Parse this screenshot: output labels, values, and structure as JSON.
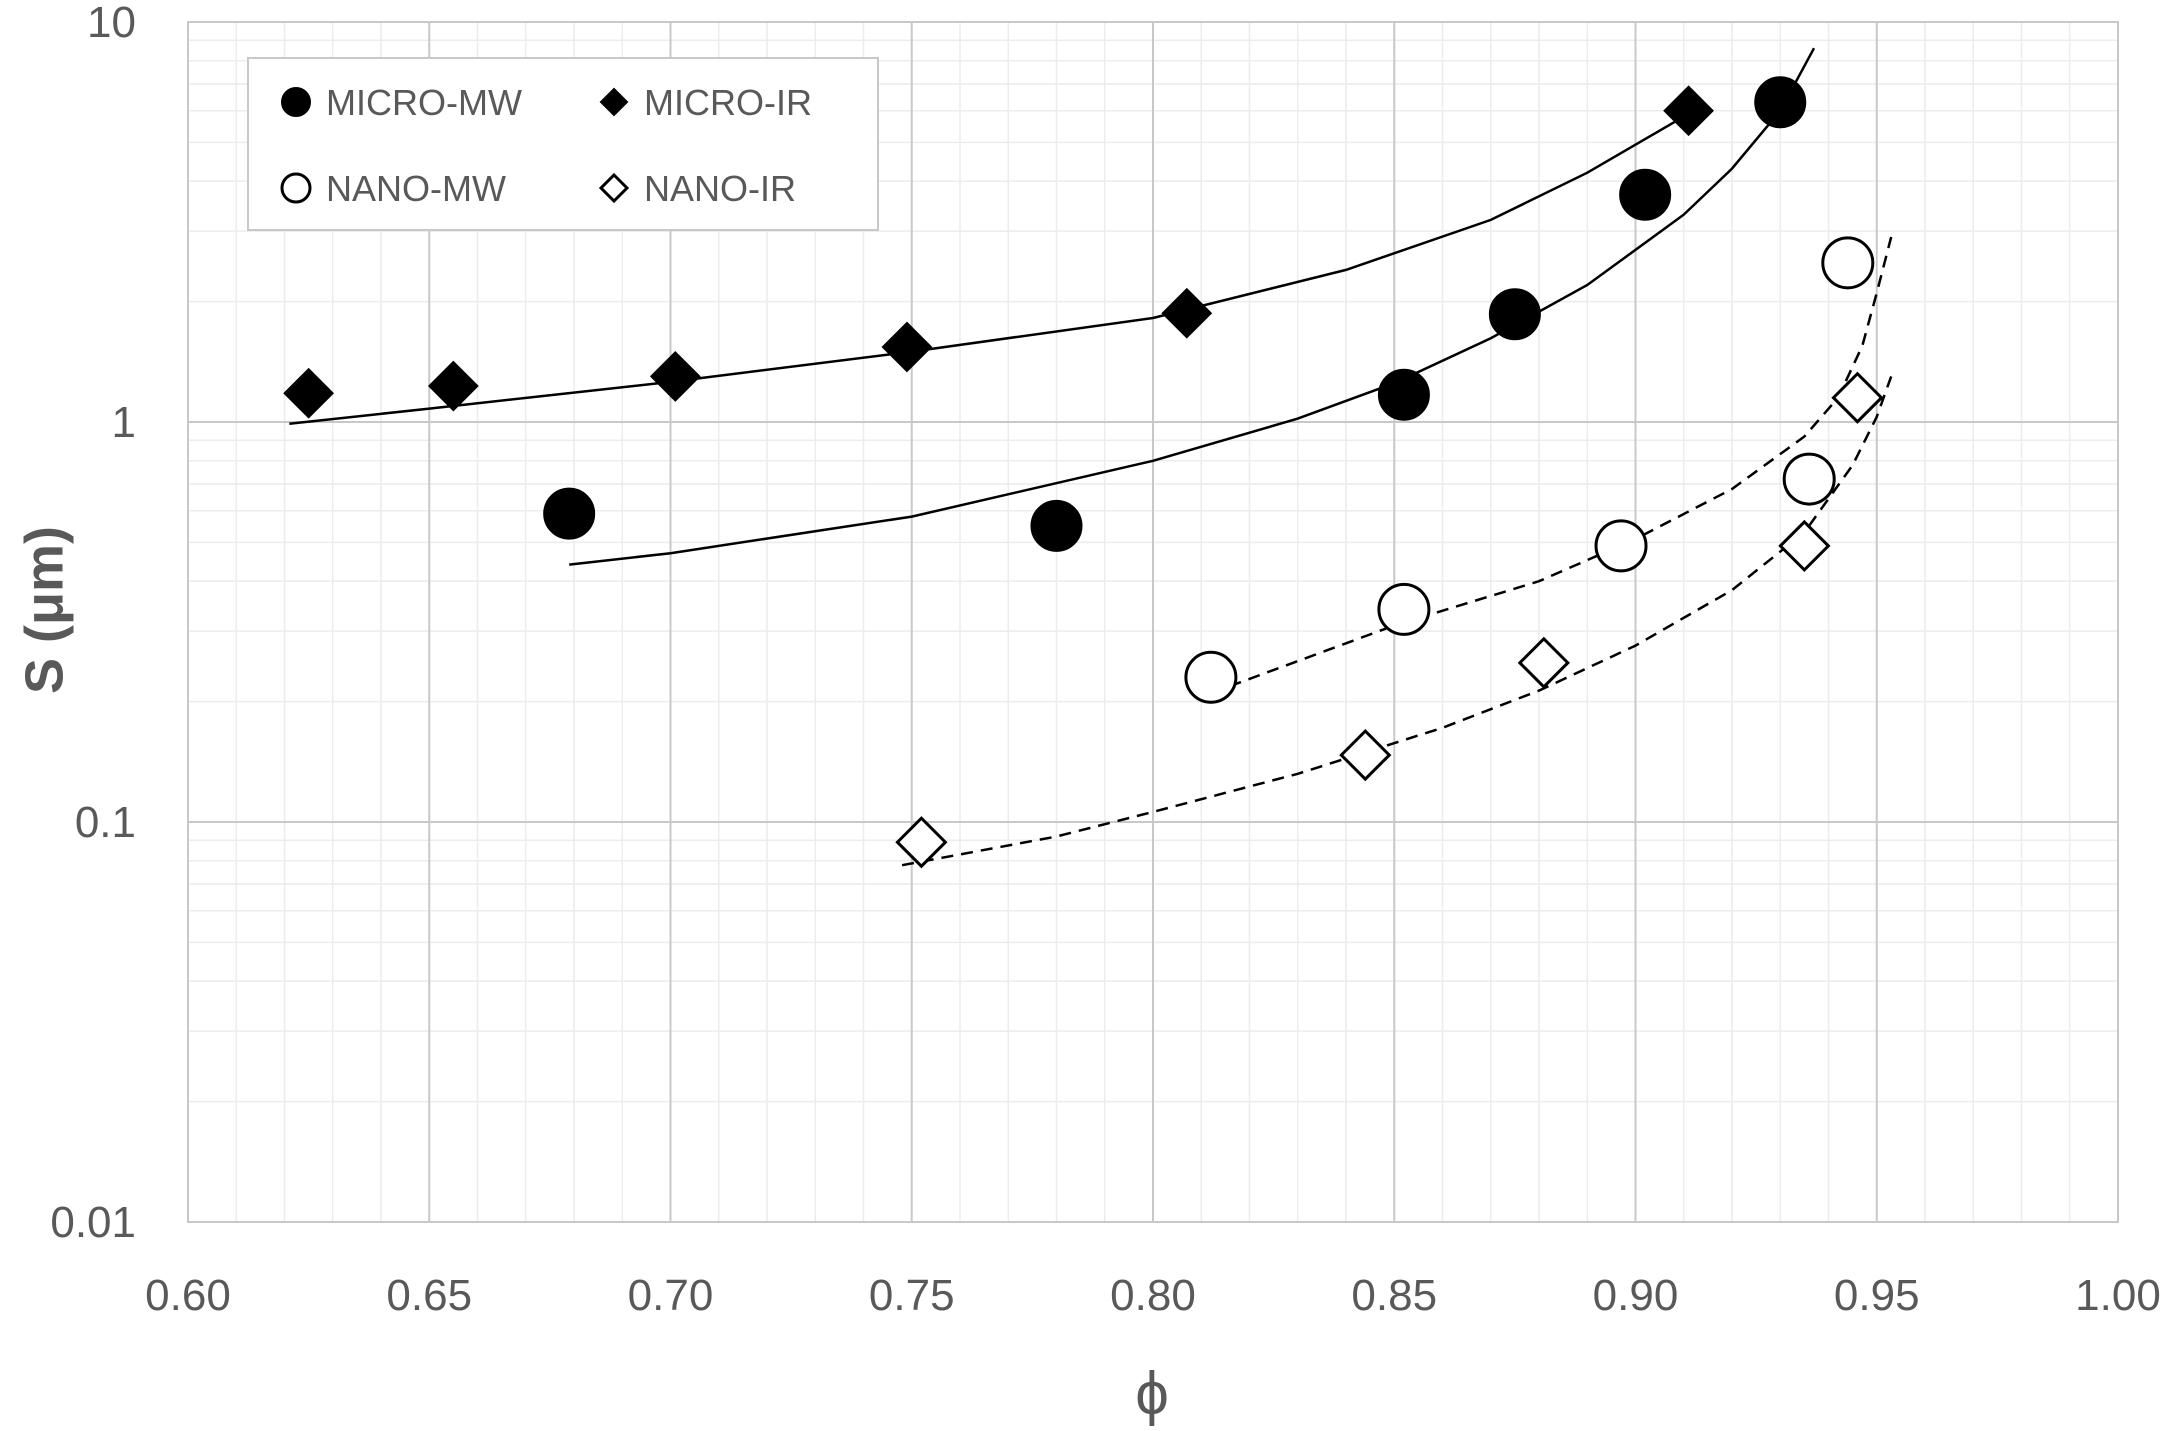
{
  "chart_data": {
    "type": "scatter",
    "title": "",
    "xlabel": "ϕ",
    "ylabel": "S (μm)",
    "x_range": [
      0.6,
      1.0
    ],
    "y_range": [
      0.01,
      10
    ],
    "y_scale": "log",
    "x_ticks": [
      "0.60",
      "0.65",
      "0.70",
      "0.75",
      "0.80",
      "0.85",
      "0.90",
      "0.95",
      "1.00"
    ],
    "y_ticks": [
      "0.01",
      "0.1",
      "1",
      "10"
    ],
    "grid": true,
    "legend_position": "top-left",
    "series": [
      {
        "name": "MICRO-MW",
        "marker": "circle-filled",
        "points": [
          [
            0.679,
            0.59
          ],
          [
            0.78,
            0.55
          ],
          [
            0.852,
            1.17
          ],
          [
            0.875,
            1.86
          ],
          [
            0.902,
            3.7
          ],
          [
            0.93,
            6.3
          ]
        ],
        "fit": {
          "style": "solid",
          "points": [
            [
              0.679,
              0.44
            ],
            [
              0.7,
              0.47
            ],
            [
              0.75,
              0.58
            ],
            [
              0.8,
              0.8
            ],
            [
              0.83,
              1.02
            ],
            [
              0.85,
              1.25
            ],
            [
              0.87,
              1.62
            ],
            [
              0.89,
              2.2
            ],
            [
              0.91,
              3.3
            ],
            [
              0.92,
              4.3
            ],
            [
              0.93,
              6.0
            ],
            [
              0.937,
              8.6
            ]
          ]
        }
      },
      {
        "name": "MICRO-IR",
        "marker": "diamond-filled",
        "points": [
          [
            0.625,
            1.18
          ],
          [
            0.655,
            1.23
          ],
          [
            0.701,
            1.3
          ],
          [
            0.749,
            1.54
          ],
          [
            0.807,
            1.87
          ],
          [
            0.911,
            6.0
          ]
        ],
        "fit": {
          "style": "solid",
          "points": [
            [
              0.621,
              0.99
            ],
            [
              0.65,
              1.08
            ],
            [
              0.7,
              1.26
            ],
            [
              0.75,
              1.5
            ],
            [
              0.8,
              1.82
            ],
            [
              0.84,
              2.4
            ],
            [
              0.87,
              3.2
            ],
            [
              0.89,
              4.2
            ],
            [
              0.91,
              5.8
            ]
          ]
        }
      },
      {
        "name": "NANO-MW",
        "marker": "circle-open",
        "points": [
          [
            0.812,
            0.23
          ],
          [
            0.852,
            0.34
          ],
          [
            0.897,
            0.49
          ],
          [
            0.936,
            0.72
          ],
          [
            0.944,
            2.5
          ]
        ],
        "fit": {
          "style": "dashed",
          "points": [
            [
              0.812,
              0.21
            ],
            [
              0.85,
              0.31
            ],
            [
              0.88,
              0.4
            ],
            [
              0.9,
              0.51
            ],
            [
              0.92,
              0.68
            ],
            [
              0.935,
              0.92
            ],
            [
              0.942,
              1.15
            ],
            [
              0.947,
              1.55
            ],
            [
              0.95,
              2.1
            ],
            [
              0.953,
              2.9
            ]
          ]
        }
      },
      {
        "name": "NANO-IR",
        "marker": "diamond-open",
        "points": [
          [
            0.752,
            0.089
          ],
          [
            0.844,
            0.147
          ],
          [
            0.881,
            0.25
          ],
          [
            0.935,
            0.49
          ],
          [
            0.946,
            1.15
          ]
        ],
        "fit": {
          "style": "dashed",
          "points": [
            [
              0.748,
              0.078
            ],
            [
              0.78,
              0.092
            ],
            [
              0.8,
              0.106
            ],
            [
              0.83,
              0.132
            ],
            [
              0.86,
              0.172
            ],
            [
              0.88,
              0.213
            ],
            [
              0.9,
              0.276
            ],
            [
              0.92,
              0.38
            ],
            [
              0.935,
              0.53
            ],
            [
              0.945,
              0.78
            ],
            [
              0.95,
              1.03
            ],
            [
              0.953,
              1.3
            ]
          ]
        }
      }
    ]
  }
}
